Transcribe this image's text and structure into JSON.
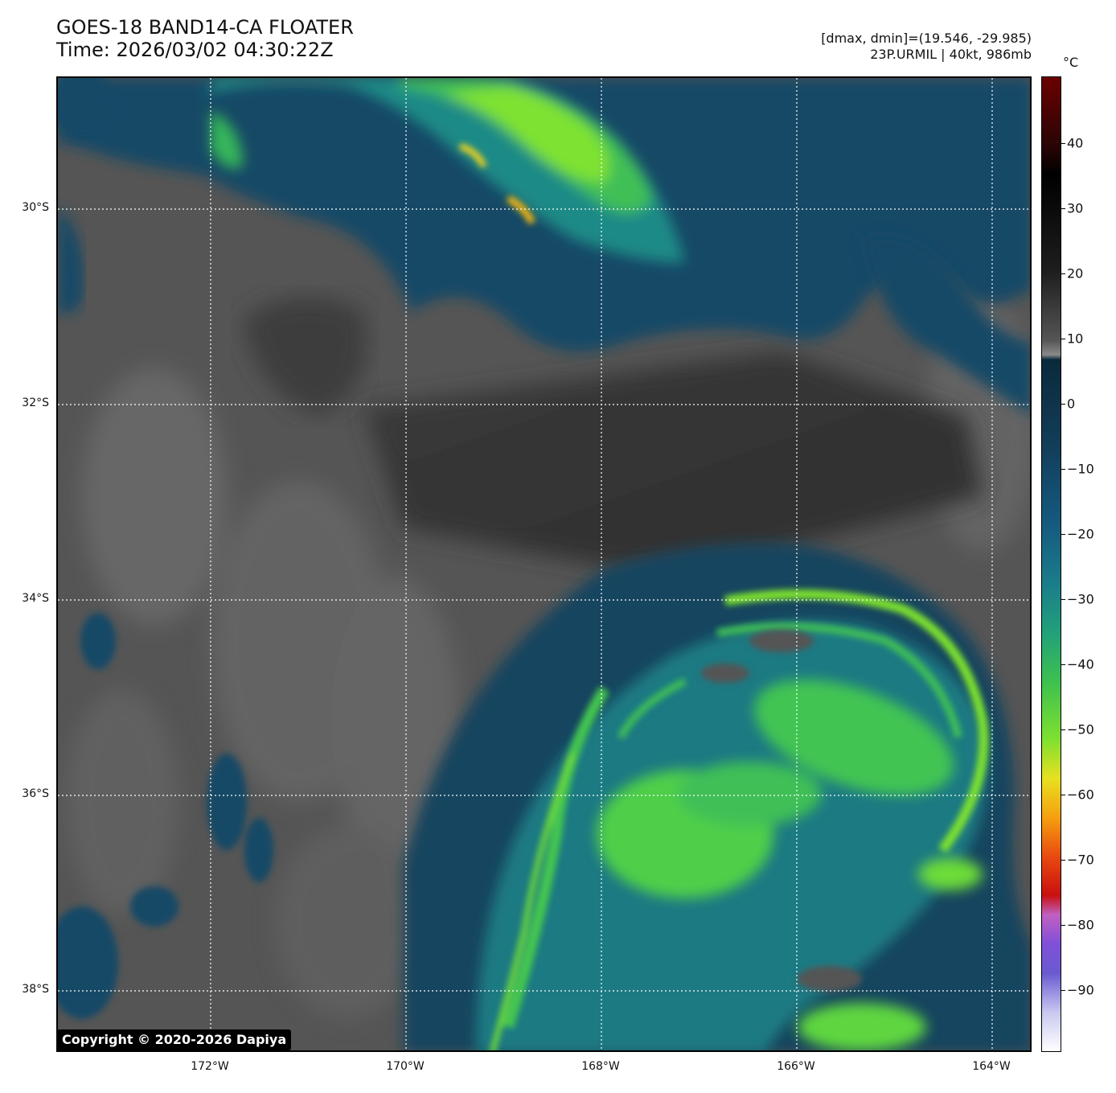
{
  "header": {
    "title": "GOES-18 BAND14-CA FLOATER",
    "time": "Time: 2026/03/02 04:30:22Z",
    "dminmax": "[dmax, dmin]=(19.546, -29.985)",
    "storm": "23P.URMIL | 40kt, 986mb"
  },
  "colorbar": {
    "unit": "°C",
    "ticks": [
      "40",
      "30",
      "20",
      "10",
      "0",
      "−10",
      "−20",
      "−30",
      "−40",
      "−50",
      "−60",
      "−70",
      "−80",
      "−90"
    ]
  },
  "map": {
    "lat_labels": [
      "30°S",
      "32°S",
      "34°S",
      "36°S",
      "38°S"
    ],
    "lon_labels": [
      "172°W",
      "170°W",
      "168°W",
      "166°W",
      "164°W"
    ],
    "copyright": "Copyright © 2020-2026 Dapiya"
  }
}
